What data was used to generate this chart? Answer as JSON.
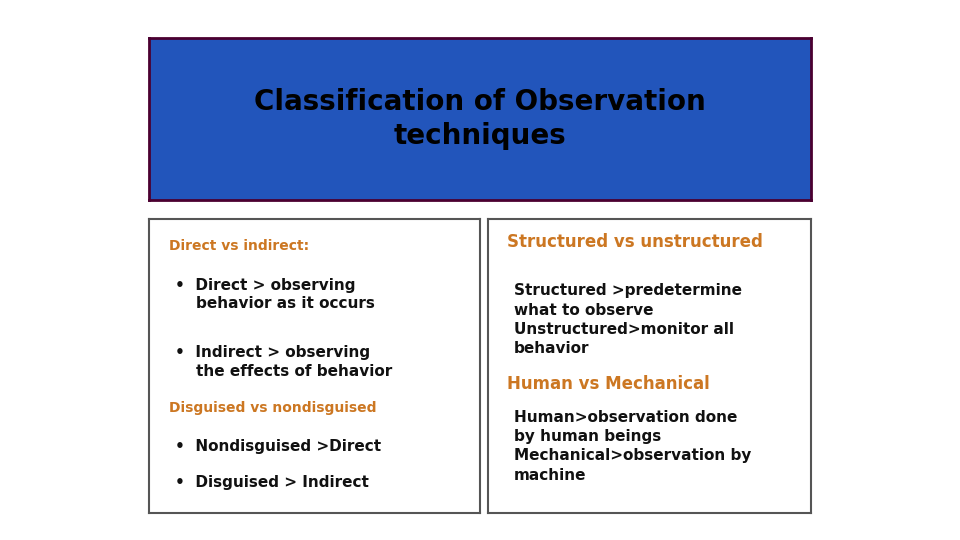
{
  "title": "Classification of Observation\ntechniques",
  "title_bg_color": "#2255BB",
  "title_border_color": "#4B0030",
  "title_text_color": "#000000",
  "title_fontsize": 20,
  "orange_color": "#CC7722",
  "black_color": "#111111",
  "box_edge_color": "#555555",
  "bg_color": "#FFFFFF",
  "left_label1": "Direct vs indirect:",
  "left_bullet1a": "•  Direct > observing\n    behavior as it occurs",
  "left_bullet1b": "•  Indirect > observing\n    the effects of behavior",
  "left_label2": "Disguised vs nondisguised",
  "left_bullet2a": "•  Nondisguised >Direct",
  "left_bullet2b": "•  Disguised > Indirect",
  "right_label1": "Structured vs unstructured",
  "right_text1": "Structured >predetermine\nwhat to observe\nUnstructured>monitor all\nbehavior",
  "right_label2": "Human vs Mechanical",
  "right_text2": "Human>observation done\nby human beings\nMechanical>observation by\nmachine"
}
